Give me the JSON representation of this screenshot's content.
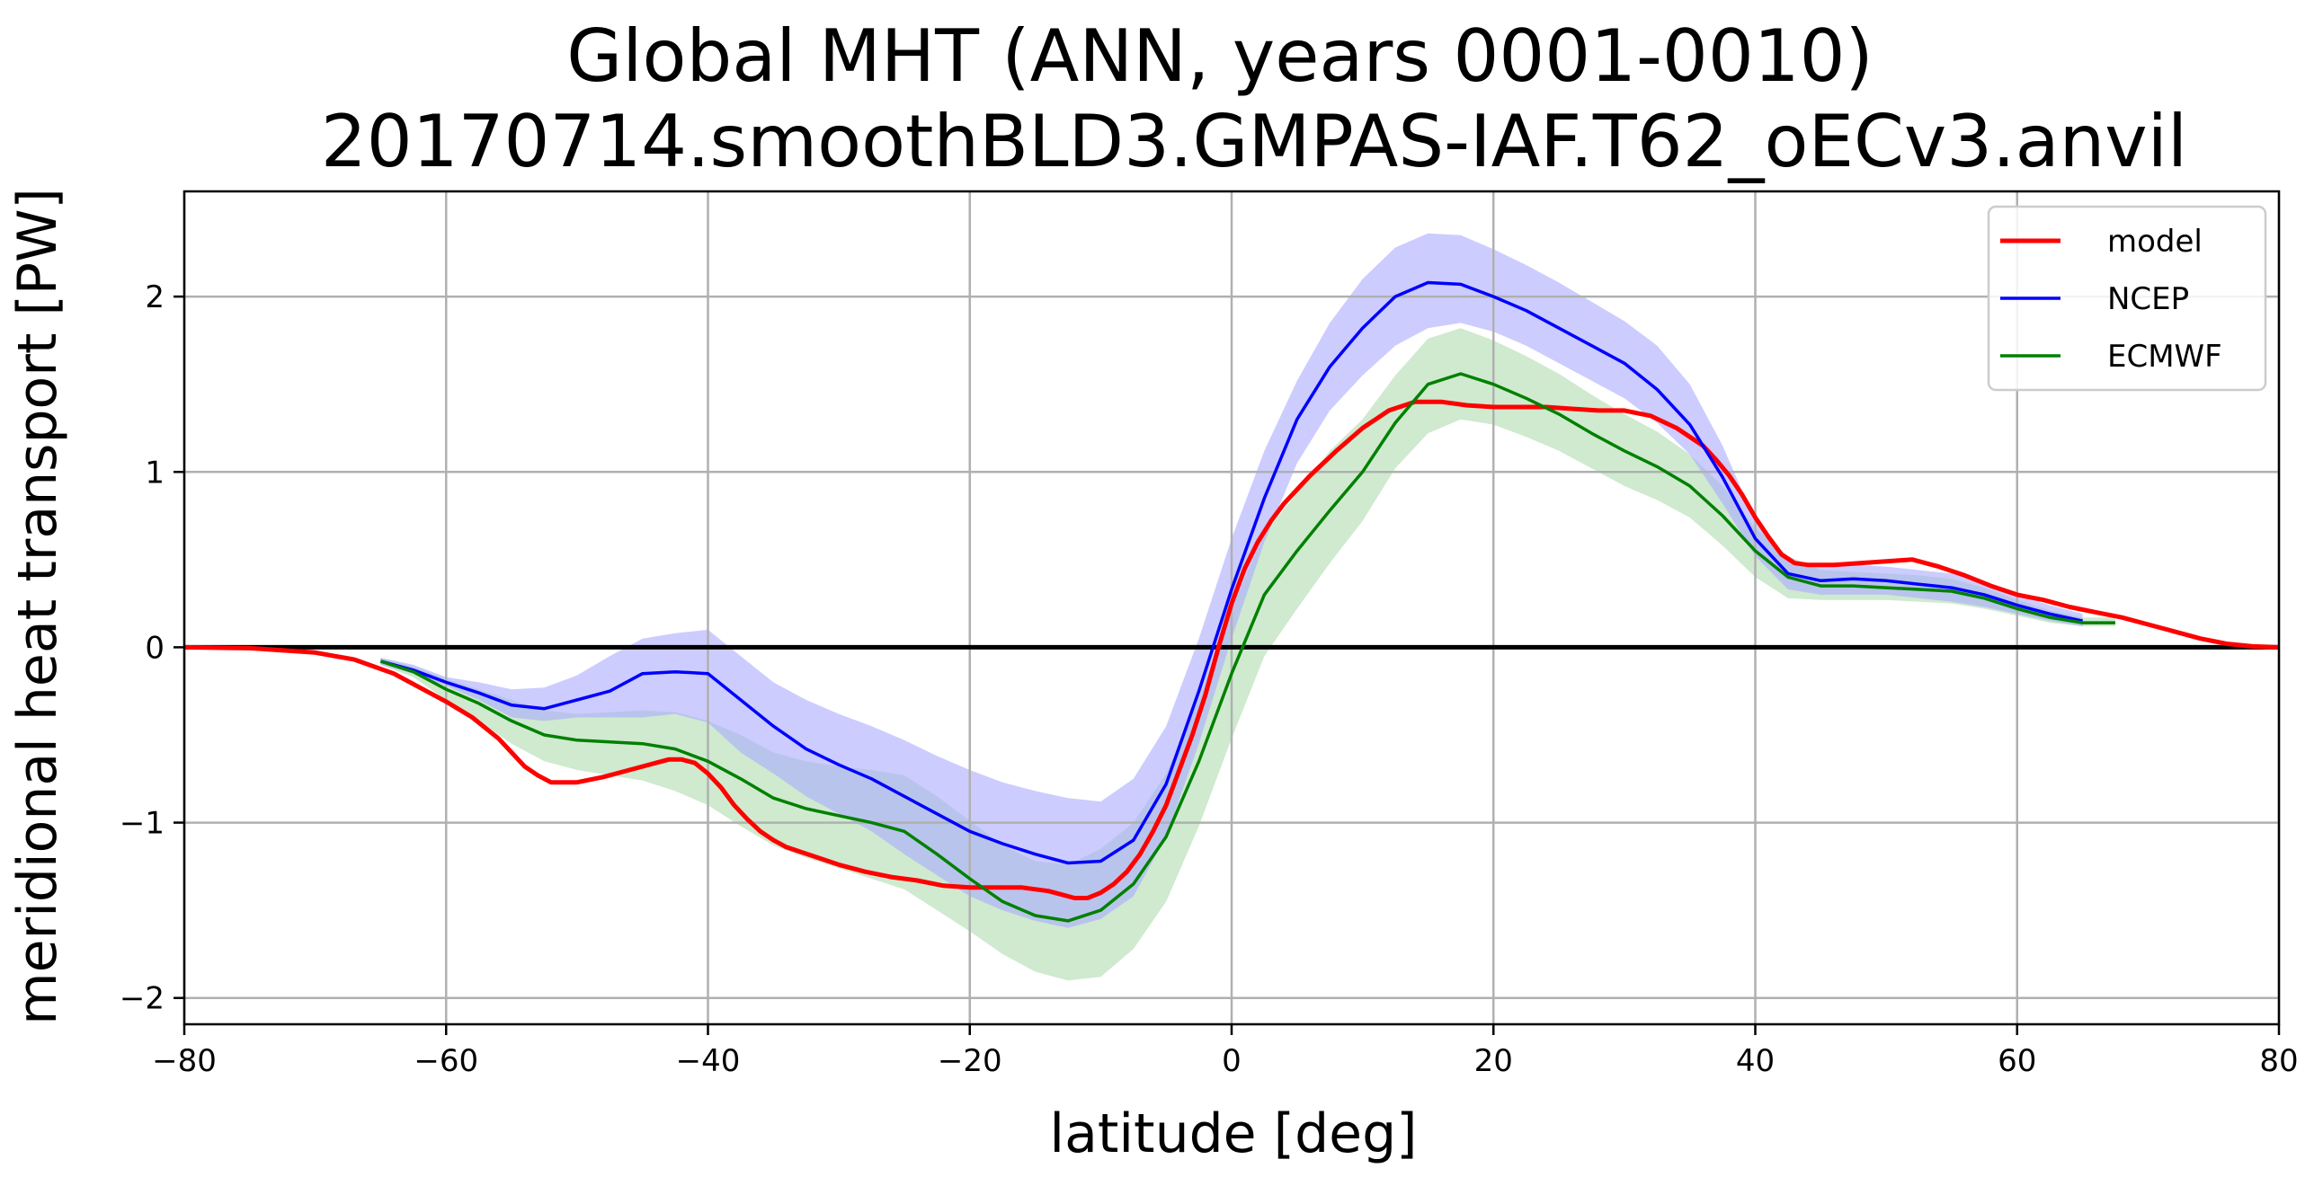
{
  "chart_data": {
    "type": "line",
    "title": "Global MHT (ANN, years 0001-0010)",
    "subtitle": "20170714.smoothBLD3.GMPAS-IAF.T62_oECv3.anvil",
    "xlabel": "latitude [deg]",
    "ylabel": "meridional heat transport [PW]",
    "xlim": [
      -80,
      80
    ],
    "ylim": [
      -2.15,
      2.6
    ],
    "xticks": [
      -80,
      -60,
      -40,
      -20,
      0,
      20,
      40,
      60,
      80
    ],
    "yticks": [
      -2,
      -1,
      0,
      1,
      2
    ],
    "xtick_labels": [
      "−80",
      "−60",
      "−40",
      "−20",
      "0",
      "20",
      "40",
      "60",
      "80"
    ],
    "ytick_labels": [
      "−2",
      "−1",
      "0",
      "1",
      "2"
    ],
    "grid": true,
    "legend_position": "top-right",
    "zero_line": true,
    "colors": {
      "model": "#ff0000",
      "ncep": "#0000ff",
      "ecmwf": "#008000",
      "ncep_band": "#aaaaff",
      "ecmwf_band": "#9fd59f",
      "grid": "#b0b0b0",
      "zero": "#000000"
    },
    "series": [
      {
        "name": "model",
        "color": "#ff0000",
        "x": [
          -80,
          -75,
          -70,
          -67,
          -64,
          -62,
          -60,
          -58,
          -56,
          -55,
          -54,
          -53,
          -52,
          -50,
          -48,
          -46,
          -44,
          -43,
          -42,
          -41,
          -40,
          -39,
          -38,
          -37,
          -36,
          -35,
          -34,
          -32,
          -30,
          -28,
          -26,
          -24,
          -22,
          -20,
          -18,
          -16,
          -14,
          -13,
          -12,
          -11,
          -10,
          -9,
          -8,
          -7,
          -6,
          -5,
          -4,
          -3,
          -2,
          -1,
          0,
          1,
          2,
          3,
          4,
          5,
          6,
          7,
          8,
          10,
          12,
          14,
          16,
          18,
          20,
          22,
          24,
          26,
          28,
          30,
          32,
          34,
          36,
          37,
          38,
          39,
          40,
          41,
          42,
          43,
          44,
          45,
          46,
          48,
          50,
          52,
          54,
          56,
          58,
          60,
          62,
          64,
          66,
          68,
          70,
          72,
          74,
          76,
          78,
          80
        ],
        "y": [
          0,
          -0.005,
          -0.03,
          -0.07,
          -0.15,
          -0.23,
          -0.31,
          -0.4,
          -0.52,
          -0.6,
          -0.68,
          -0.73,
          -0.77,
          -0.77,
          -0.74,
          -0.7,
          -0.66,
          -0.64,
          -0.64,
          -0.66,
          -0.72,
          -0.8,
          -0.9,
          -0.98,
          -1.05,
          -1.1,
          -1.14,
          -1.19,
          -1.24,
          -1.28,
          -1.31,
          -1.33,
          -1.36,
          -1.37,
          -1.37,
          -1.37,
          -1.39,
          -1.41,
          -1.43,
          -1.43,
          -1.4,
          -1.35,
          -1.28,
          -1.18,
          -1.05,
          -0.9,
          -0.7,
          -0.5,
          -0.27,
          0.0,
          0.25,
          0.45,
          0.6,
          0.72,
          0.82,
          0.9,
          0.98,
          1.05,
          1.12,
          1.25,
          1.35,
          1.4,
          1.4,
          1.38,
          1.37,
          1.37,
          1.37,
          1.36,
          1.35,
          1.35,
          1.32,
          1.25,
          1.15,
          1.07,
          0.98,
          0.87,
          0.74,
          0.63,
          0.53,
          0.48,
          0.47,
          0.47,
          0.47,
          0.48,
          0.49,
          0.5,
          0.46,
          0.41,
          0.35,
          0.3,
          0.27,
          0.23,
          0.2,
          0.17,
          0.13,
          0.09,
          0.05,
          0.02,
          0.005,
          0
        ]
      },
      {
        "name": "NCEP",
        "color": "#0000ff",
        "x": [
          -65,
          -62.5,
          -60,
          -57.5,
          -55,
          -52.5,
          -50,
          -47.5,
          -45,
          -42.5,
          -40,
          -37.5,
          -35,
          -32.5,
          -30,
          -27.5,
          -25,
          -22.5,
          -20,
          -17.5,
          -15,
          -12.5,
          -10,
          -7.5,
          -5,
          -2.5,
          0,
          2.5,
          5,
          7.5,
          10,
          12.5,
          15,
          17.5,
          20,
          22.5,
          25,
          27.5,
          30,
          32.5,
          35,
          37.5,
          40,
          42.5,
          45,
          47.5,
          50,
          52.5,
          55,
          57.5,
          60,
          62.5,
          65
        ],
        "y": [
          -0.08,
          -0.13,
          -0.2,
          -0.26,
          -0.33,
          -0.35,
          -0.3,
          -0.25,
          -0.15,
          -0.14,
          -0.15,
          -0.3,
          -0.45,
          -0.58,
          -0.67,
          -0.75,
          -0.85,
          -0.95,
          -1.05,
          -1.12,
          -1.18,
          -1.23,
          -1.22,
          -1.1,
          -0.78,
          -0.25,
          0.33,
          0.85,
          1.3,
          1.6,
          1.82,
          2.0,
          2.08,
          2.07,
          2.0,
          1.92,
          1.82,
          1.72,
          1.62,
          1.47,
          1.27,
          0.97,
          0.62,
          0.42,
          0.38,
          0.39,
          0.38,
          0.36,
          0.34,
          0.3,
          0.24,
          0.19,
          0.15
        ],
        "band_low": [
          -0.1,
          -0.15,
          -0.22,
          -0.3,
          -0.4,
          -0.42,
          -0.4,
          -0.4,
          -0.4,
          -0.38,
          -0.43,
          -0.6,
          -0.72,
          -0.85,
          -0.95,
          -1.05,
          -1.18,
          -1.3,
          -1.42,
          -1.5,
          -1.56,
          -1.6,
          -1.55,
          -1.42,
          -1.08,
          -0.55,
          0.05,
          0.6,
          1.05,
          1.35,
          1.55,
          1.72,
          1.82,
          1.85,
          1.8,
          1.72,
          1.62,
          1.52,
          1.42,
          1.28,
          1.1,
          0.82,
          0.52,
          0.33,
          0.3,
          0.3,
          0.3,
          0.28,
          0.26,
          0.23,
          0.19,
          0.15,
          0.12
        ],
        "band_high": [
          -0.06,
          -0.1,
          -0.17,
          -0.2,
          -0.24,
          -0.23,
          -0.16,
          -0.05,
          0.05,
          0.08,
          0.1,
          -0.05,
          -0.2,
          -0.3,
          -0.38,
          -0.45,
          -0.53,
          -0.62,
          -0.7,
          -0.77,
          -0.82,
          -0.86,
          -0.88,
          -0.75,
          -0.45,
          0.05,
          0.62,
          1.12,
          1.52,
          1.85,
          2.1,
          2.28,
          2.36,
          2.35,
          2.27,
          2.18,
          2.08,
          1.97,
          1.86,
          1.72,
          1.5,
          1.15,
          0.72,
          0.5,
          0.46,
          0.47,
          0.46,
          0.44,
          0.42,
          0.37,
          0.3,
          0.24,
          0.19
        ]
      },
      {
        "name": "ECMWF",
        "color": "#008000",
        "x": [
          -65,
          -62.5,
          -60,
          -57.5,
          -55,
          -52.5,
          -50,
          -47.5,
          -45,
          -42.5,
          -40,
          -37.5,
          -35,
          -32.5,
          -30,
          -27.5,
          -25,
          -22.5,
          -20,
          -17.5,
          -15,
          -12.5,
          -10,
          -7.5,
          -5,
          -2.5,
          0,
          2.5,
          5,
          7.5,
          10,
          12.5,
          15,
          17.5,
          20,
          22.5,
          25,
          27.5,
          30,
          32.5,
          35,
          37.5,
          40,
          42.5,
          45,
          47.5,
          50,
          52.5,
          55,
          57.5,
          60,
          62.5,
          65,
          67.5
        ],
        "y": [
          -0.08,
          -0.14,
          -0.24,
          -0.32,
          -0.42,
          -0.5,
          -0.53,
          -0.54,
          -0.55,
          -0.58,
          -0.65,
          -0.75,
          -0.86,
          -0.92,
          -0.96,
          -1.0,
          -1.05,
          -1.18,
          -1.32,
          -1.45,
          -1.53,
          -1.56,
          -1.5,
          -1.35,
          -1.08,
          -0.65,
          -0.15,
          0.3,
          0.55,
          0.78,
          1.0,
          1.28,
          1.5,
          1.56,
          1.5,
          1.42,
          1.33,
          1.22,
          1.12,
          1.03,
          0.92,
          0.75,
          0.55,
          0.4,
          0.35,
          0.35,
          0.34,
          0.33,
          0.32,
          0.28,
          0.22,
          0.17,
          0.14,
          0.14
        ],
        "band_low": [
          -0.1,
          -0.17,
          -0.3,
          -0.42,
          -0.55,
          -0.65,
          -0.7,
          -0.73,
          -0.76,
          -0.82,
          -0.9,
          -1.02,
          -1.13,
          -1.2,
          -1.26,
          -1.32,
          -1.38,
          -1.5,
          -1.62,
          -1.75,
          -1.85,
          -1.9,
          -1.88,
          -1.72,
          -1.45,
          -1.02,
          -0.52,
          -0.05,
          0.22,
          0.48,
          0.72,
          1.02,
          1.22,
          1.3,
          1.27,
          1.2,
          1.12,
          1.02,
          0.92,
          0.84,
          0.74,
          0.58,
          0.4,
          0.28,
          0.27,
          0.27,
          0.27,
          0.26,
          0.25,
          0.22,
          0.18,
          0.14,
          0.12,
          0.12
        ],
        "band_high": [
          -0.06,
          -0.11,
          -0.18,
          -0.24,
          -0.3,
          -0.36,
          -0.38,
          -0.37,
          -0.36,
          -0.37,
          -0.42,
          -0.5,
          -0.6,
          -0.65,
          -0.68,
          -0.7,
          -0.73,
          -0.85,
          -0.99,
          -1.13,
          -1.22,
          -1.24,
          -1.15,
          -1.0,
          -0.72,
          -0.3,
          0.22,
          0.65,
          0.88,
          1.12,
          1.3,
          1.55,
          1.76,
          1.82,
          1.75,
          1.66,
          1.56,
          1.44,
          1.33,
          1.23,
          1.1,
          0.92,
          0.68,
          0.52,
          0.44,
          0.43,
          0.42,
          0.41,
          0.39,
          0.34,
          0.27,
          0.21,
          0.17,
          0.17
        ]
      }
    ]
  }
}
